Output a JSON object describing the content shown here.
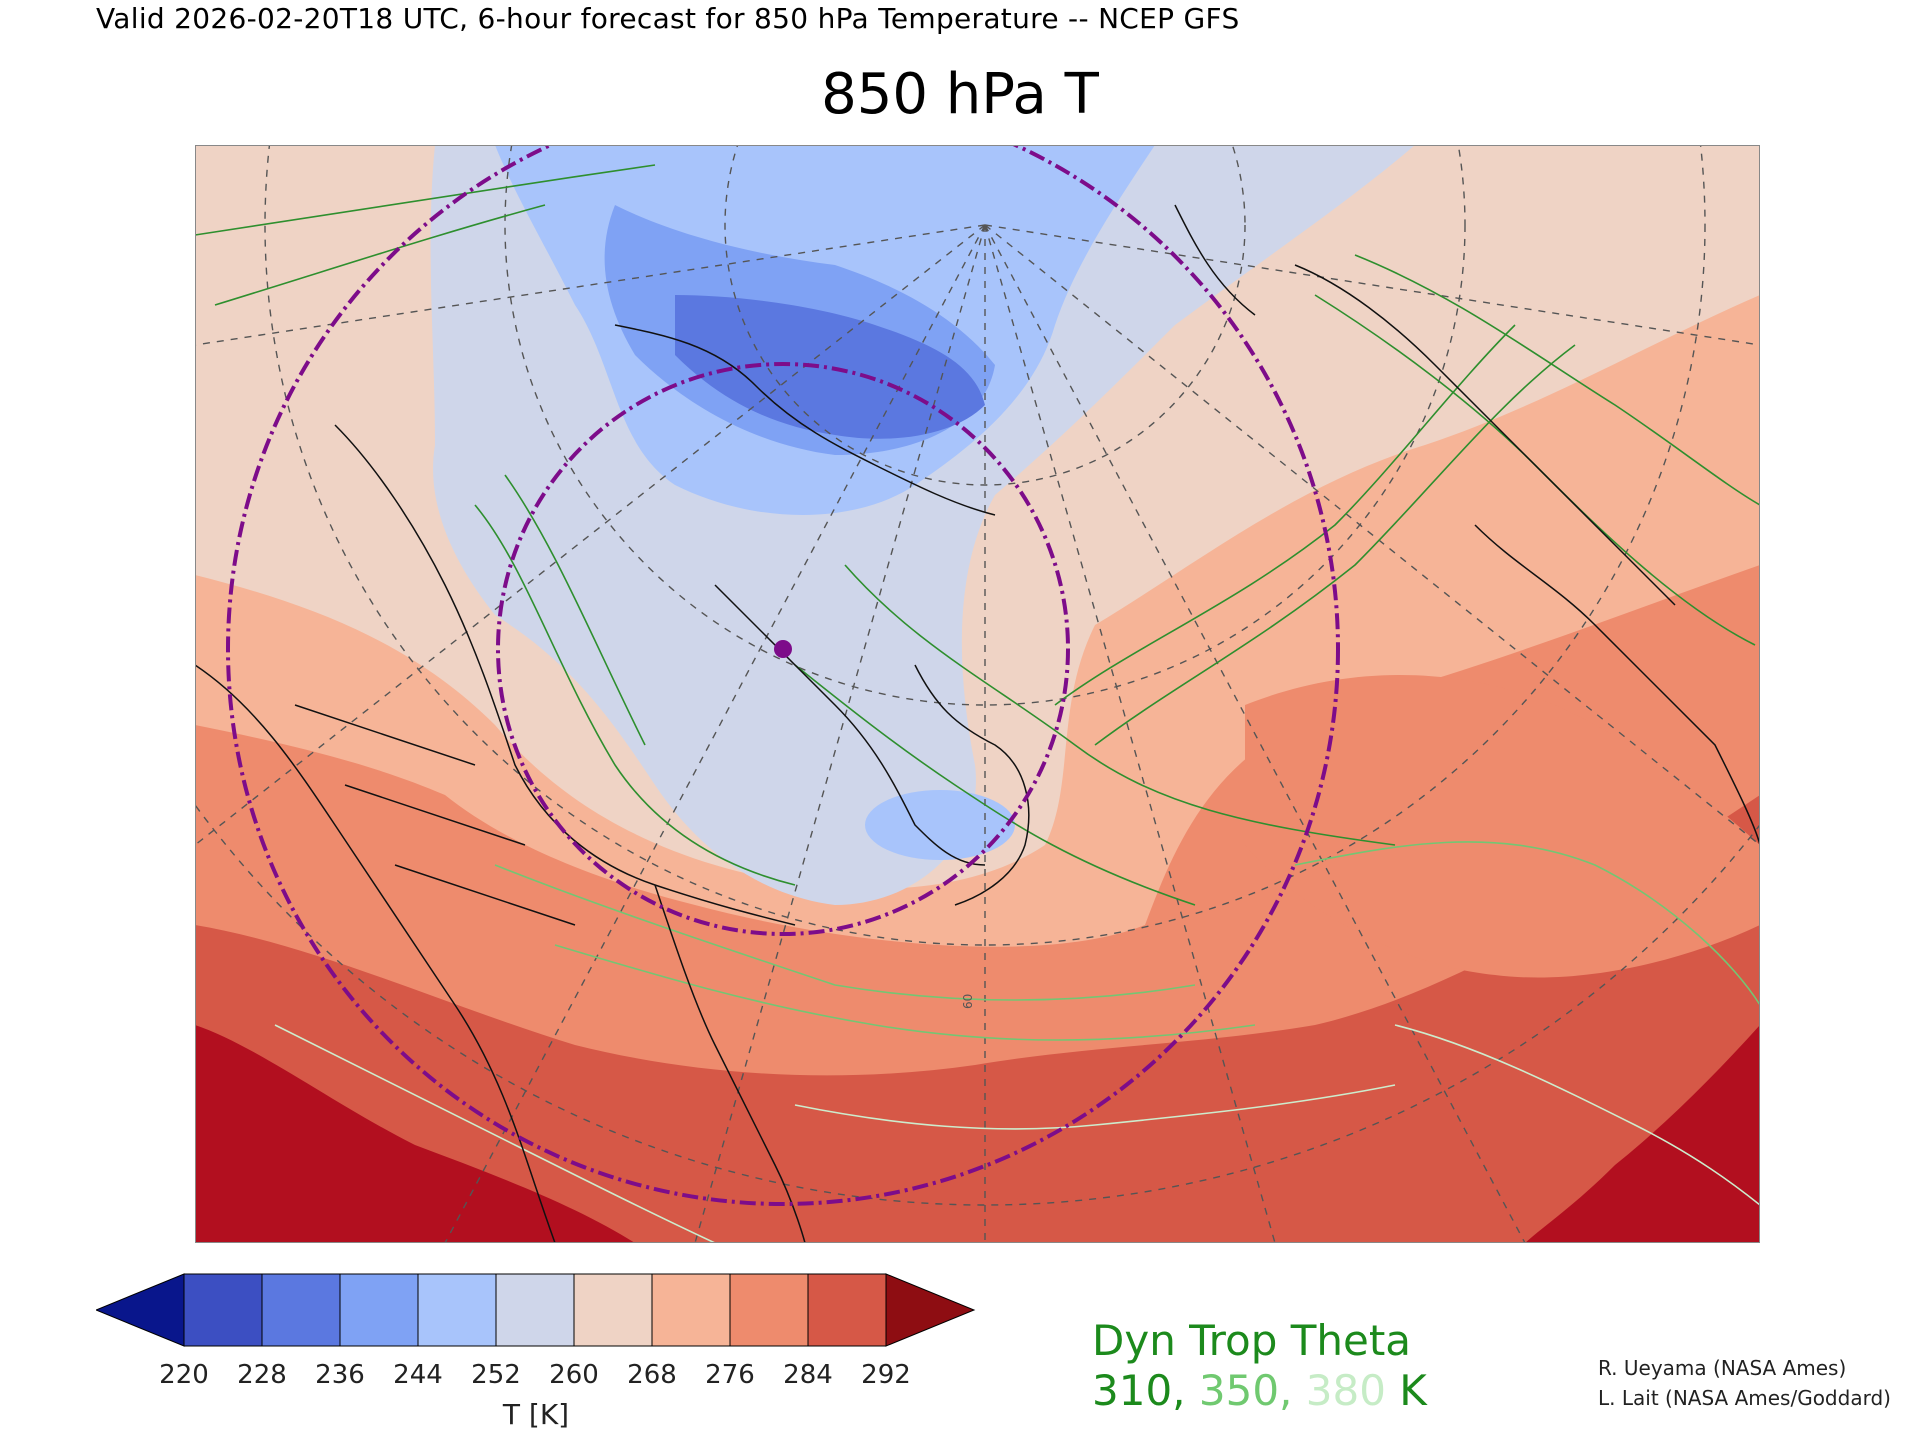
{
  "header": {
    "valid_line": "Valid 2026-02-20T18 UTC, 6-hour forecast for 850 hPa Temperature -- NCEP GFS",
    "title": "850 hPa T"
  },
  "map": {
    "field": "850 hPa Temperature",
    "projection": "polar stereographic, North America / North Atlantic",
    "contour_label": "60",
    "overlays": [
      "dynamical tropopause theta contours",
      "circles (dash-dot, purple)",
      "lat/lon grid (dashed)",
      "coastlines and borders"
    ]
  },
  "colorbar": {
    "ticks": [
      "220",
      "228",
      "236",
      "244",
      "252",
      "260",
      "268",
      "276",
      "284",
      "292"
    ],
    "unit_label": "T [K]",
    "colors": [
      "#3c4fc2",
      "#5b78e0",
      "#7fa2f4",
      "#a8c4fb",
      "#cfd6ea",
      "#efd3c5",
      "#f6b497",
      "#ee8b6d",
      "#d65847"
    ],
    "under_color": "#09168c",
    "over_color": "#8e0d12"
  },
  "legend": {
    "title": "Dyn Trop Theta",
    "values": [
      {
        "text": "310",
        "color": "#1c8a1c"
      },
      {
        "text": "350",
        "color": "#70c970"
      },
      {
        "text": "380",
        "color": "#c6ecc6"
      }
    ],
    "unit": "K",
    "sep": ", "
  },
  "credits": [
    "R. Ueyama (NASA Ames)",
    "L. Lait (NASA Ames/Goddard)"
  ],
  "field_colors": {
    "dark_red": "#b20f1f",
    "contour_310": "#2e8f2e",
    "contour_350": "#73c673",
    "contour_380": "#cdeccd",
    "circle": "#7d0c8a"
  }
}
